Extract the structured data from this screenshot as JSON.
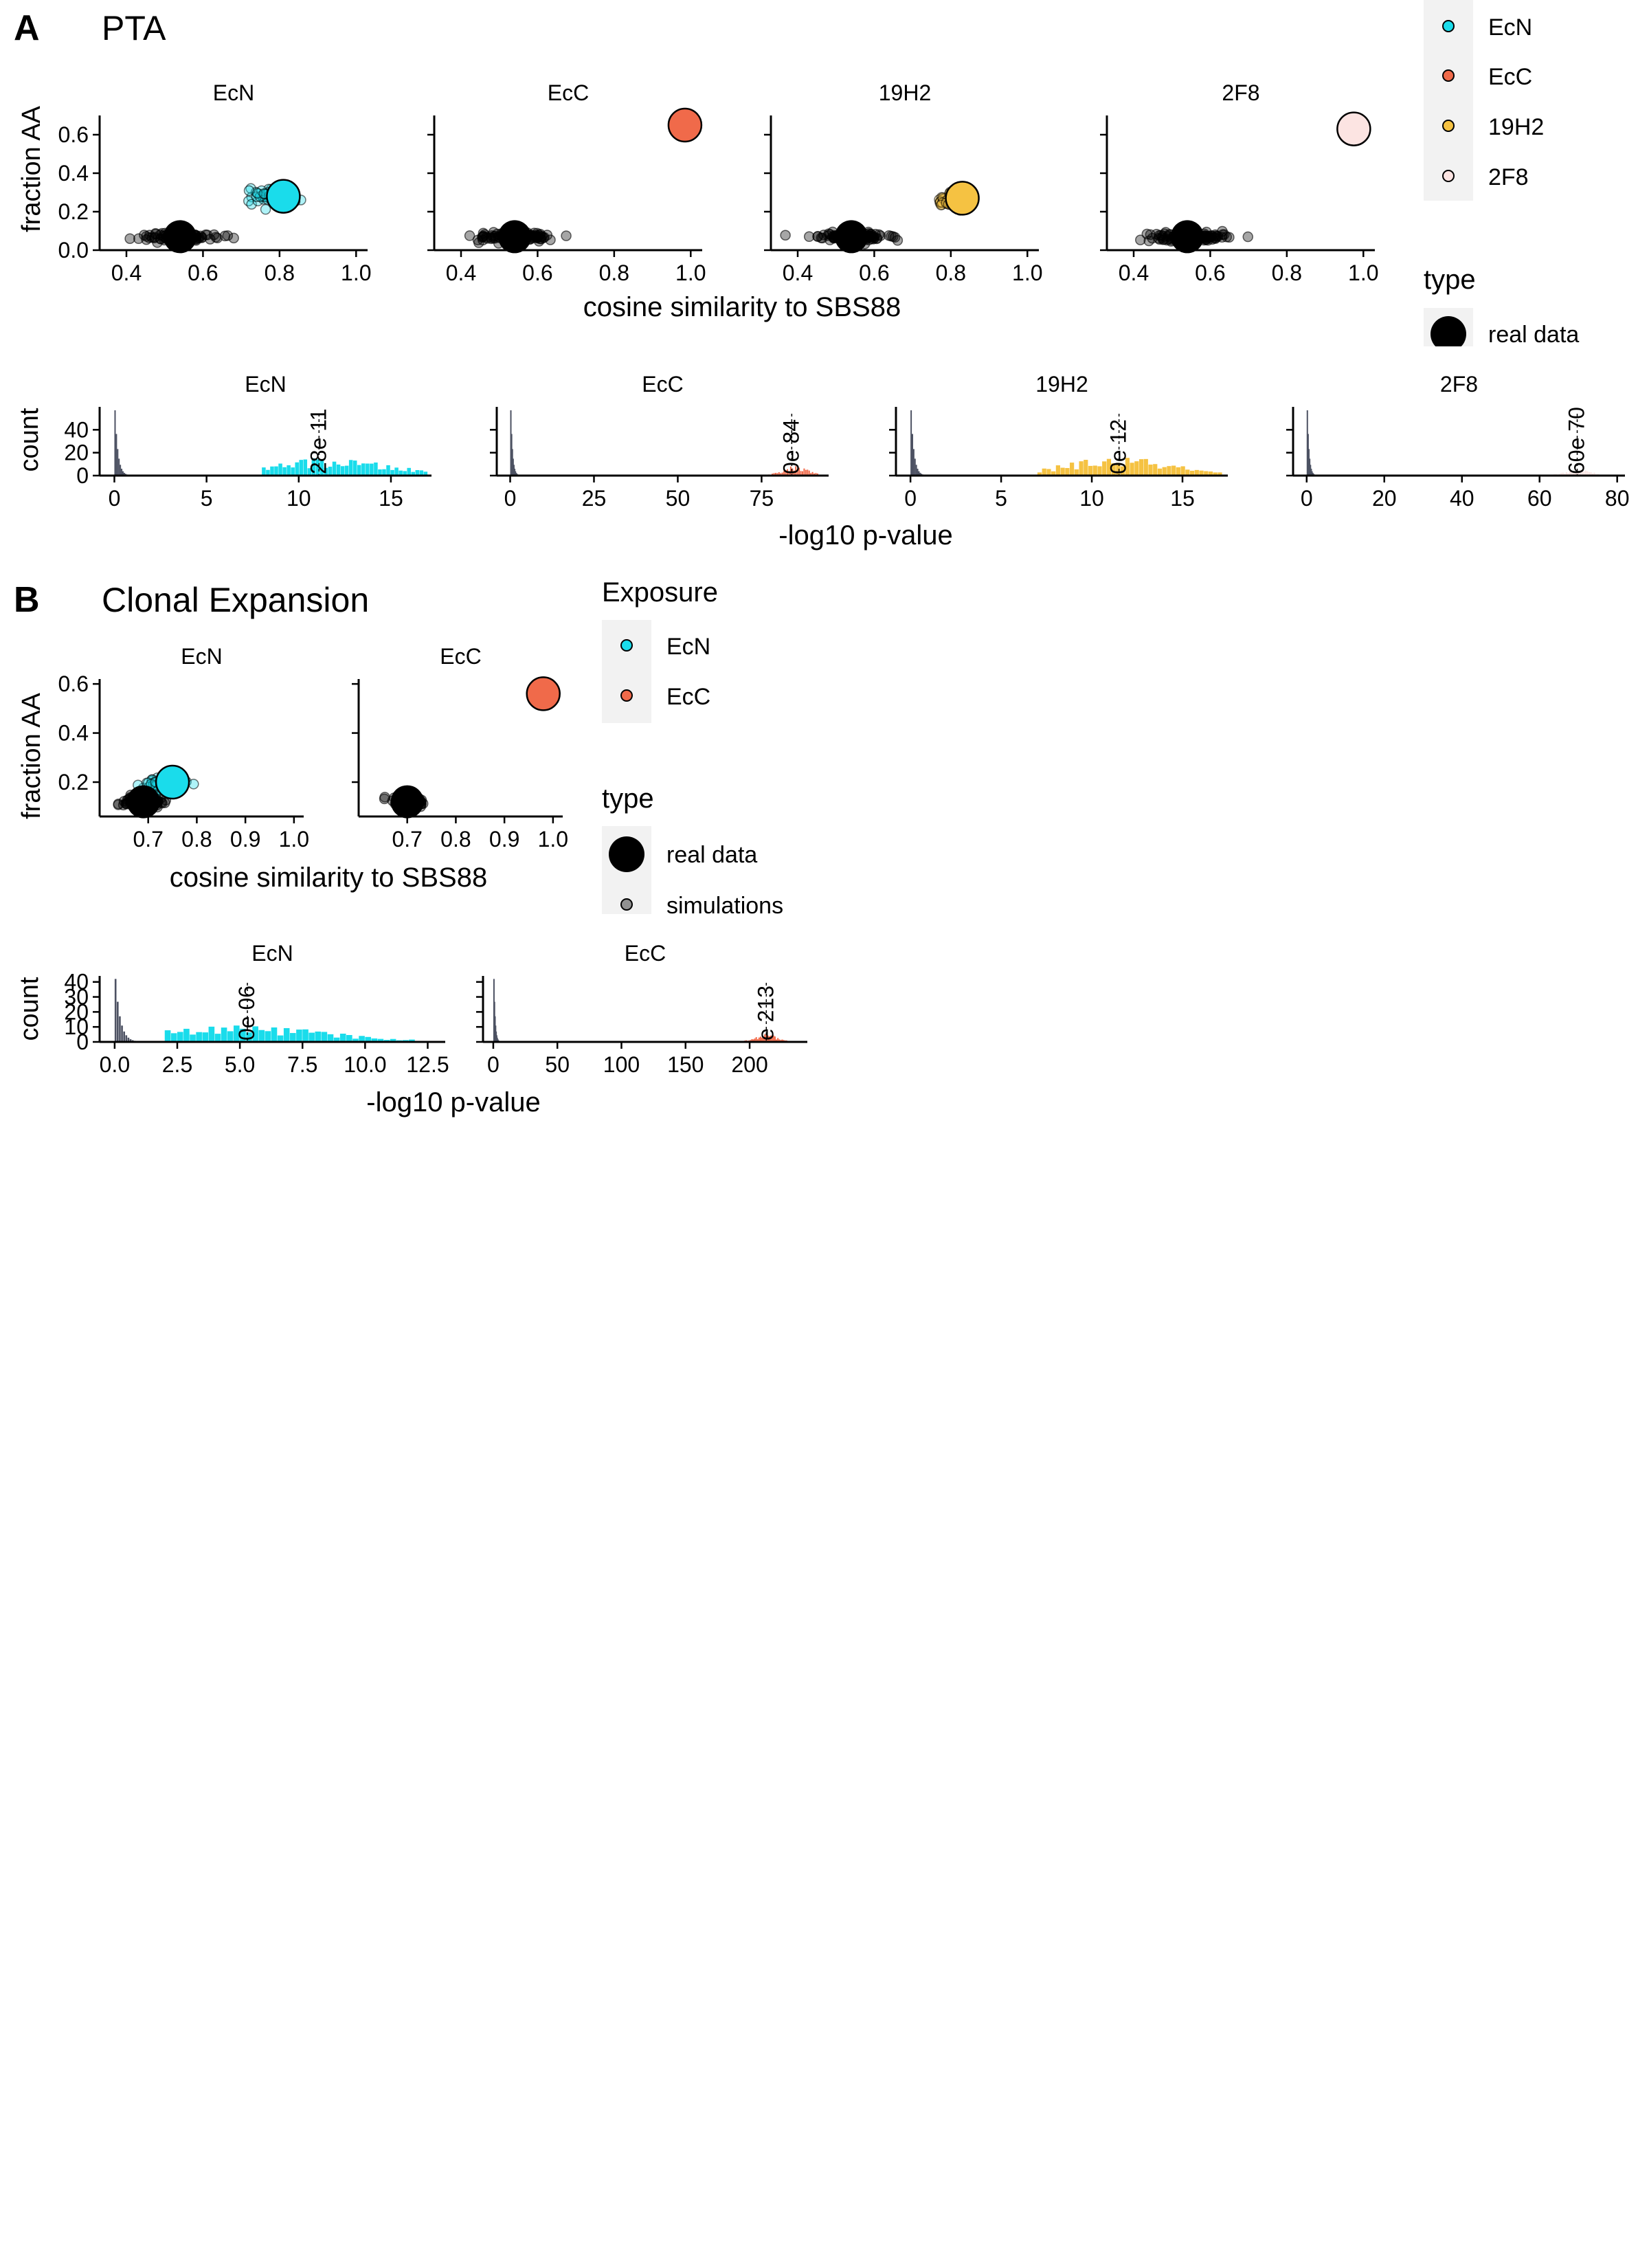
{
  "colors": {
    "EcN": "#1ADCEB",
    "EcC": "#F06A4A",
    "19H2": "#F5C242",
    "2F8": "#FCE4E2",
    "sim": "#000000",
    "sim_hist": "#4D5263",
    "legend_key_bg": "#F2F2F2"
  },
  "panelA": {
    "letter": "A",
    "title": "PTA",
    "scatter_ylabel": "fraction AA",
    "scatter_xlabel": "cosine similarity to SBS88",
    "hist_ylabel": "count",
    "hist_xlabel": "-log10 p-value",
    "legend_exposure_items": [
      "EcN",
      "EcC",
      "19H2",
      "2F8"
    ],
    "legend_type_title": "type",
    "legend_type_items": [
      "real data"
    ]
  },
  "panelB": {
    "letter": "B",
    "title": "Clonal Expansion",
    "scatter_ylabel": "fraction AA",
    "scatter_xlabel": "cosine similarity to SBS88",
    "hist_ylabel": "count",
    "hist_xlabel": "-log10 p-value",
    "legend_exposure_title": "Exposure",
    "legend_exposure_items": [
      "EcN",
      "EcC"
    ],
    "legend_type_title": "type",
    "legend_type_items": [
      "real data",
      "simulations"
    ]
  },
  "chart_data": [
    {
      "type": "scatter",
      "panel": "A",
      "facet": "EcN",
      "xlim": [
        0.33,
        1.03
      ],
      "ylim": [
        0,
        0.7
      ],
      "xticks": [
        0.4,
        0.6,
        0.8,
        1.0
      ],
      "xtick_labels": [
        "0.4",
        "0.6",
        "0.8",
        "1.0"
      ],
      "yticks": [
        0.0,
        0.2,
        0.4,
        0.6
      ],
      "ytick_labels": [
        "0.0",
        "0.2",
        "0.4",
        "0.6"
      ],
      "null_center": [
        0.54,
        0.07
      ],
      "null_spread": [
        0.09,
        0.02
      ],
      "exposure_center": [
        0.78,
        0.28
      ],
      "exposure_spread": [
        0.05,
        0.04
      ],
      "real_null": [
        0.54,
        0.07
      ],
      "real_exposure": [
        0.81,
        0.28
      ]
    },
    {
      "type": "scatter",
      "panel": "A",
      "facet": "EcC",
      "xlim": [
        0.33,
        1.03
      ],
      "ylim": [
        0,
        0.7
      ],
      "xticks": [
        0.4,
        0.6,
        0.8,
        1.0
      ],
      "xtick_labels": [
        "0.4",
        "0.6",
        "0.8",
        "1.0"
      ],
      "yticks": [
        0.0,
        0.2,
        0.4,
        0.6
      ],
      "ytick_labels": [],
      "null_center": [
        0.54,
        0.07
      ],
      "null_spread": [
        0.09,
        0.02
      ],
      "exposure_center": [
        0.985,
        0.65
      ],
      "exposure_spread": [
        0.004,
        0.01
      ],
      "real_null": [
        0.54,
        0.07
      ],
      "real_exposure": [
        0.985,
        0.65
      ]
    },
    {
      "type": "scatter",
      "panel": "A",
      "facet": "19H2",
      "xlim": [
        0.33,
        1.03
      ],
      "ylim": [
        0,
        0.7
      ],
      "xticks": [
        0.4,
        0.6,
        0.8,
        1.0
      ],
      "xtick_labels": [
        "0.4",
        "0.6",
        "0.8",
        "1.0"
      ],
      "yticks": [
        0.0,
        0.2,
        0.4,
        0.6
      ],
      "ytick_labels": [],
      "null_center": [
        0.54,
        0.07
      ],
      "null_spread": [
        0.09,
        0.02
      ],
      "exposure_center": [
        0.8,
        0.26
      ],
      "exposure_spread": [
        0.03,
        0.03
      ],
      "real_null": [
        0.54,
        0.07
      ],
      "real_exposure": [
        0.83,
        0.27
      ]
    },
    {
      "type": "scatter",
      "panel": "A",
      "facet": "2F8",
      "xlim": [
        0.33,
        1.03
      ],
      "ylim": [
        0,
        0.7
      ],
      "xticks": [
        0.4,
        0.6,
        0.8,
        1.0
      ],
      "xtick_labels": [
        "0.4",
        "0.6",
        "0.8",
        "1.0"
      ],
      "yticks": [
        0.0,
        0.2,
        0.4,
        0.6
      ],
      "ytick_labels": [],
      "null_center": [
        0.54,
        0.07
      ],
      "null_spread": [
        0.09,
        0.02
      ],
      "exposure_center": [
        0.975,
        0.63
      ],
      "exposure_spread": [
        0.004,
        0.01
      ],
      "real_null": [
        0.54,
        0.07
      ],
      "real_exposure": [
        0.975,
        0.63
      ]
    },
    {
      "type": "bar",
      "panel": "A",
      "facet": "EcN",
      "xlim": [
        -0.8,
        17.2
      ],
      "ylim": [
        0,
        60
      ],
      "xticks": [
        0,
        5,
        10,
        15
      ],
      "yticks": [
        0,
        20,
        40
      ],
      "ytick_labels": [
        "0",
        "20",
        "40"
      ],
      "null_dist": [
        0.1,
        0.25,
        57
      ],
      "exposure_dist": [
        8,
        17,
        11.5,
        3.5,
        11
      ],
      "vline": 11.1,
      "vline_label": "28e 11"
    },
    {
      "type": "bar",
      "panel": "A",
      "facet": "EcC",
      "xlim": [
        -4,
        95
      ],
      "ylim": [
        0,
        60
      ],
      "xticks": [
        0,
        25,
        50,
        75
      ],
      "yticks": [
        0,
        20,
        40
      ],
      "ytick_labels": [],
      "null_dist": [
        0.3,
        0.8,
        57
      ],
      "exposure_dist": [
        72,
        92,
        85,
        4,
        6
      ],
      "vline": 84,
      "vline_label": "0e 84"
    },
    {
      "type": "bar",
      "panel": "A",
      "facet": "19H2",
      "xlim": [
        -0.8,
        17.5
      ],
      "ylim": [
        0,
        60
      ],
      "xticks": [
        0,
        5,
        10,
        15
      ],
      "yticks": [
        0,
        20,
        40
      ],
      "ytick_labels": [],
      "null_dist": [
        0.1,
        0.25,
        57
      ],
      "exposure_dist": [
        7,
        17.2,
        11.5,
        3,
        12
      ],
      "vline": 11.5,
      "vline_label": "0e 12"
    },
    {
      "type": "bar",
      "panel": "A",
      "facet": "2F8",
      "xlim": [
        -3.5,
        82
      ],
      "ylim": [
        0,
        60
      ],
      "xticks": [
        0,
        20,
        40,
        60,
        80
      ],
      "yticks": [
        0,
        20,
        40
      ],
      "ytick_labels": [],
      "null_dist": [
        0.3,
        0.7,
        57
      ],
      "exposure_dist": [
        60,
        78,
        70,
        3.5,
        4
      ],
      "vline": 69.7,
      "vline_label": "60e 70"
    },
    {
      "type": "scatter",
      "panel": "B",
      "facet": "EcN",
      "xlim": [
        0.6,
        1.02
      ],
      "ylim": [
        0.06,
        0.62
      ],
      "xticks": [
        0.7,
        0.8,
        0.9,
        1.0
      ],
      "xtick_labels": [
        "0.7",
        "0.8",
        "0.9",
        "1.0"
      ],
      "yticks": [
        0.2,
        0.4,
        0.6
      ],
      "ytick_labels": [
        "0.2",
        "0.4",
        "0.6"
      ],
      "null_center": [
        0.69,
        0.12
      ],
      "null_spread": [
        0.035,
        0.02
      ],
      "exposure_center": [
        0.73,
        0.19
      ],
      "exposure_spread": [
        0.04,
        0.03
      ],
      "real_null": [
        0.69,
        0.12
      ],
      "real_exposure": [
        0.75,
        0.2
      ]
    },
    {
      "type": "scatter",
      "panel": "B",
      "facet": "EcC",
      "xlim": [
        0.6,
        1.02
      ],
      "ylim": [
        0.06,
        0.62
      ],
      "xticks": [
        0.7,
        0.8,
        0.9,
        1.0
      ],
      "xtick_labels": [
        "0.7",
        "0.8",
        "0.9",
        "1.0"
      ],
      "yticks": [
        0.2,
        0.4,
        0.6
      ],
      "ytick_labels": [],
      "null_center": [
        0.7,
        0.12
      ],
      "null_spread": [
        0.03,
        0.015
      ],
      "exposure_center": [
        0.98,
        0.56
      ],
      "exposure_spread": [
        0.004,
        0.008
      ],
      "real_null": [
        0.7,
        0.12
      ],
      "real_exposure": [
        0.98,
        0.56
      ]
    },
    {
      "type": "bar",
      "panel": "B",
      "facet": "EcN",
      "xlim": [
        -0.6,
        13.2
      ],
      "ylim": [
        0,
        44
      ],
      "xticks": [
        0.0,
        2.5,
        5.0,
        7.5,
        10.0,
        12.5
      ],
      "xtick_labels": [
        "0.0",
        "2.5",
        "5.0",
        "7.5",
        "10.0",
        "12.5"
      ],
      "yticks": [
        0,
        10,
        20,
        30,
        40
      ],
      "ytick_labels": [
        "0",
        "10",
        "20",
        "30",
        "40"
      ],
      "null_dist": [
        0.1,
        0.3,
        42
      ],
      "exposure_dist": [
        2,
        12,
        5,
        3.5,
        8
      ],
      "vline": 5.3,
      "vline_label": "0e 06"
    },
    {
      "type": "bar",
      "panel": "B",
      "facet": "EcC",
      "xlim": [
        -8,
        245
      ],
      "ylim": [
        0,
        44
      ],
      "xticks": [
        0,
        50,
        100,
        150,
        200
      ],
      "xtick_labels": [
        "0",
        "50",
        "100",
        "150",
        "200"
      ],
      "yticks": [
        0,
        10,
        20,
        30,
        40
      ],
      "ytick_labels": [],
      "null_dist": [
        0.5,
        1.5,
        42
      ],
      "exposure_dist": [
        190,
        235,
        213,
        9,
        4
      ],
      "vline": 213,
      "vline_label": "e 213"
    }
  ]
}
